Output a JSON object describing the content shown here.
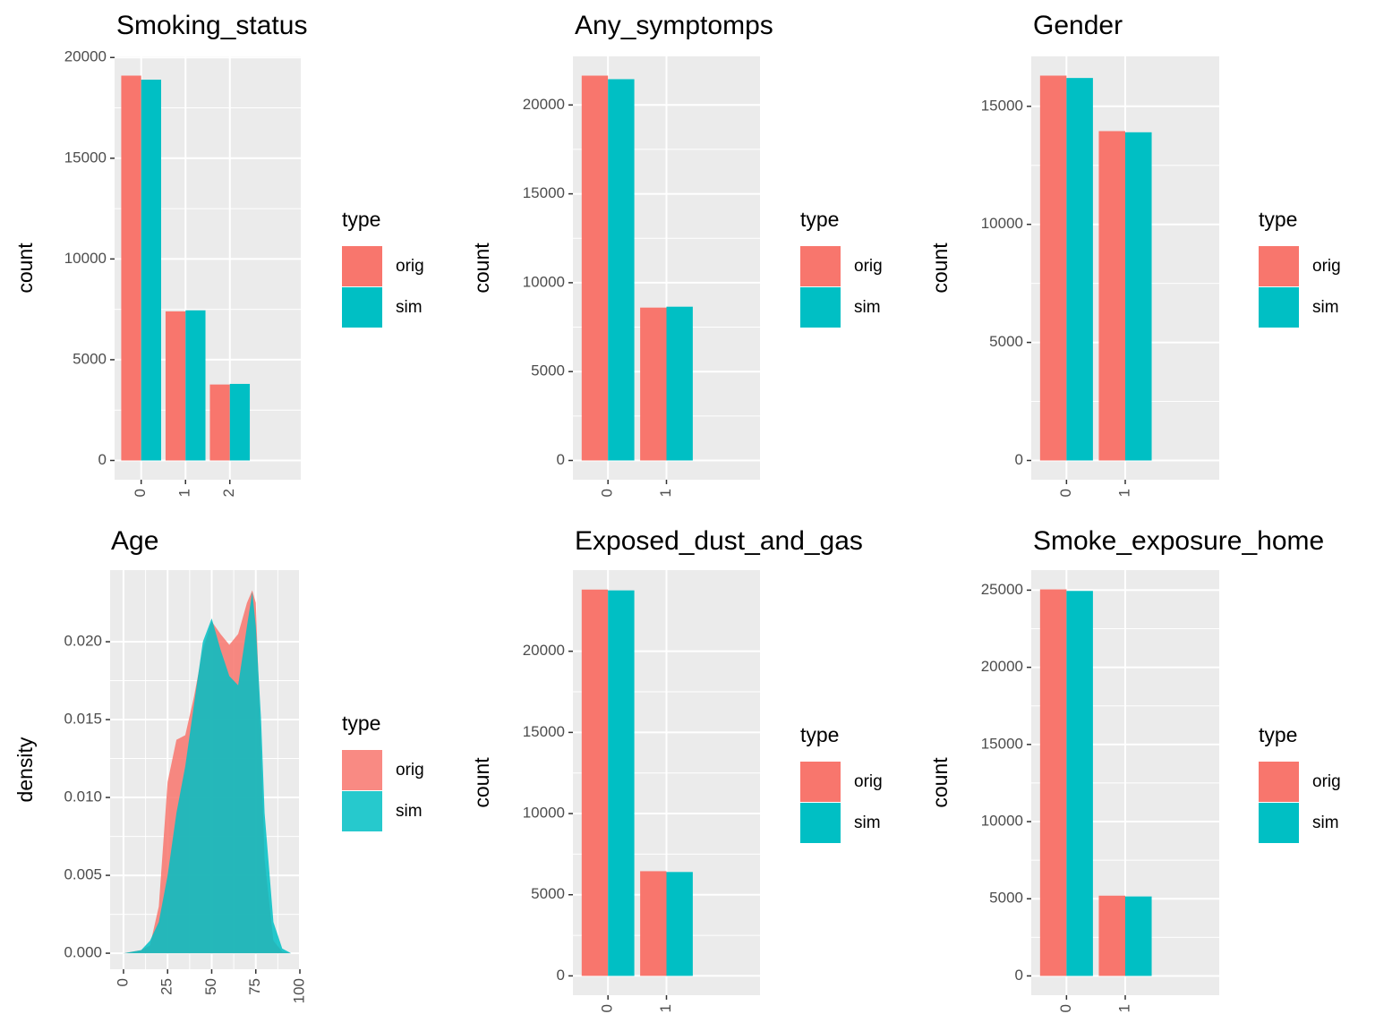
{
  "chart_data": [
    {
      "type": "bar",
      "title": "Smoking_status",
      "y_label": "count",
      "legend_title": "type",
      "grid": true,
      "categories": [
        "0",
        "1",
        "2"
      ],
      "series": [
        {
          "name": "orig",
          "color": "#F8766D",
          "values": [
            19100,
            7400,
            3770
          ]
        },
        {
          "name": "sim",
          "color": "#00BFC4",
          "values": [
            18900,
            7450,
            3800
          ]
        }
      ],
      "ylim": [
        -955,
        20055
      ],
      "yticks": [
        0,
        5000,
        10000,
        15000,
        20000
      ]
    },
    {
      "type": "bar",
      "title": "Any_symptomps",
      "y_label": "count",
      "legend_title": "type",
      "grid": true,
      "categories": [
        "0",
        "1"
      ],
      "series": [
        {
          "name": "orig",
          "color": "#F8766D",
          "values": [
            21650,
            8600
          ]
        },
        {
          "name": "sim",
          "color": "#00BFC4",
          "values": [
            21450,
            8650
          ]
        }
      ],
      "ylim": [
        -1083,
        22733
      ],
      "yticks": [
        0,
        5000,
        10000,
        15000,
        20000
      ]
    },
    {
      "type": "bar",
      "title": "Gender",
      "y_label": "count",
      "legend_title": "type",
      "grid": true,
      "categories": [
        "0",
        "1"
      ],
      "series": [
        {
          "name": "orig",
          "color": "#F8766D",
          "values": [
            16300,
            13950
          ]
        },
        {
          "name": "sim",
          "color": "#00BFC4",
          "values": [
            16200,
            13900
          ]
        }
      ],
      "ylim": [
        -815,
        17115
      ],
      "yticks": [
        0,
        5000,
        10000,
        15000
      ]
    },
    {
      "type": "density",
      "title": "Age",
      "y_label": "density",
      "legend_title": "type",
      "grid": true,
      "alpha": 0.85,
      "x": [
        0,
        10,
        15,
        20,
        25,
        30,
        35,
        40,
        45,
        50,
        55,
        60,
        65,
        70,
        73,
        75,
        78,
        80,
        85,
        90,
        95
      ],
      "series": [
        {
          "name": "orig",
          "color": "#F8766D",
          "values": [
            0,
            0.0002,
            0.0005,
            0.003,
            0.011,
            0.0137,
            0.014,
            0.0165,
            0.0195,
            0.0213,
            0.0205,
            0.0198,
            0.0205,
            0.0225,
            0.0233,
            0.0225,
            0.013,
            0.006,
            0.0008,
            0.0001,
            0
          ]
        },
        {
          "name": "sim",
          "color": "#00BFC4",
          "values": [
            0,
            0.0002,
            0.0008,
            0.002,
            0.005,
            0.009,
            0.012,
            0.016,
            0.02,
            0.0215,
            0.0195,
            0.0178,
            0.0172,
            0.021,
            0.0232,
            0.021,
            0.015,
            0.009,
            0.002,
            0.0003,
            0
          ]
        }
      ],
      "xlim": [
        -7.6,
        100
      ],
      "xticks": [
        0,
        25,
        50,
        75,
        100
      ],
      "ylim": [
        -0.00103,
        0.0246
      ],
      "yticks": [
        {
          "value": 0,
          "label": "0.000"
        },
        0.005,
        {
          "value": 0.01,
          "label": "0.010"
        },
        0.015,
        {
          "value": 0.02,
          "label": "0.020"
        }
      ]
    },
    {
      "type": "bar",
      "title": "Exposed_dust_and_gas",
      "y_label": "count",
      "legend_title": "type",
      "grid": true,
      "categories": [
        "0",
        "1"
      ],
      "series": [
        {
          "name": "orig",
          "color": "#F8766D",
          "values": [
            23800,
            6450
          ]
        },
        {
          "name": "sim",
          "color": "#00BFC4",
          "values": [
            23750,
            6400
          ]
        }
      ],
      "ylim": [
        -1190,
        25000
      ],
      "yticks": [
        0,
        5000,
        10000,
        15000,
        20000
      ]
    },
    {
      "type": "bar",
      "title": "Smoke_exposure_home",
      "y_label": "count",
      "legend_title": "type",
      "grid": true,
      "categories": [
        "0",
        "1"
      ],
      "series": [
        {
          "name": "orig",
          "color": "#F8766D",
          "values": [
            25050,
            5200
          ]
        },
        {
          "name": "sim",
          "color": "#00BFC4",
          "values": [
            24950,
            5150
          ]
        }
      ],
      "ylim": [
        -1250,
        26300
      ],
      "yticks": [
        0,
        5000,
        10000,
        15000,
        20000,
        25000
      ]
    }
  ]
}
